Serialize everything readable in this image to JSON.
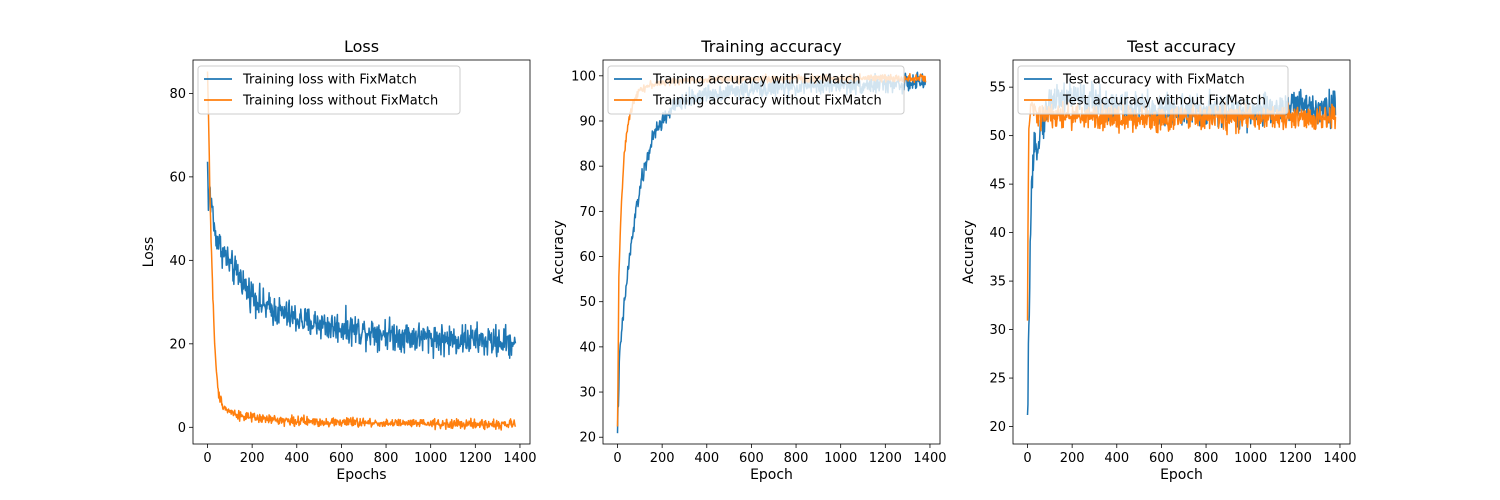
{
  "chart_data": [
    {
      "type": "line",
      "title": "Loss",
      "xlabel": "Epochs",
      "ylabel": "Loss",
      "xlim": [
        -65,
        1445
      ],
      "ylim": [
        -4,
        88
      ],
      "xticks": [
        0,
        200,
        400,
        600,
        800,
        1000,
        1200,
        1400
      ],
      "yticks": [
        0,
        20,
        40,
        60,
        80
      ],
      "legend_position": "upper-left",
      "series": [
        {
          "name": "Training loss with FixMatch",
          "color": "#1f77b4",
          "x": [
            0,
            5,
            10,
            15,
            20,
            30,
            40,
            50,
            60,
            80,
            100,
            125,
            150,
            175,
            200,
            250,
            300,
            350,
            400,
            450,
            500,
            550,
            600,
            650,
            700,
            750,
            800,
            850,
            900,
            950,
            1000,
            1050,
            1100,
            1150,
            1200,
            1250,
            1300,
            1350,
            1380
          ],
          "y": [
            63,
            53,
            58,
            51,
            55,
            47,
            46,
            44,
            43,
            41,
            39,
            37,
            36,
            33,
            32,
            29,
            28,
            27,
            26,
            25,
            25,
            24,
            24,
            23.5,
            23,
            23,
            22.5,
            22,
            22,
            21.5,
            21.5,
            21,
            21,
            21,
            21,
            20.5,
            20.5,
            20.5,
            20.5
          ],
          "noise": 2.3
        },
        {
          "name": "Training loss without FixMatch",
          "color": "#ff7f0e",
          "x": [
            0,
            5,
            10,
            15,
            20,
            25,
            30,
            35,
            40,
            45,
            50,
            60,
            70,
            80,
            100,
            150,
            200,
            300,
            400,
            500,
            600,
            700,
            800,
            900,
            1000,
            1100,
            1200,
            1300,
            1380
          ],
          "y": [
            85,
            74,
            58,
            47,
            38,
            30,
            23,
            17,
            13,
            10,
            8,
            6.5,
            5.5,
            4.5,
            3.8,
            2.8,
            2.2,
            1.8,
            1.5,
            1.3,
            1.2,
            1.1,
            1.0,
            0.9,
            0.8,
            0.8,
            0.7,
            0.7,
            0.7
          ],
          "noise": 0.7
        }
      ]
    },
    {
      "type": "line",
      "title": "Training accuracy",
      "xlabel": "Epoch",
      "ylabel": "Accuracy",
      "xlim": [
        -65,
        1445
      ],
      "ylim": [
        18.5,
        103.5
      ],
      "xticks": [
        0,
        200,
        400,
        600,
        800,
        1000,
        1200,
        1400
      ],
      "yticks": [
        20,
        30,
        40,
        50,
        60,
        70,
        80,
        90,
        100
      ],
      "legend_position": "upper-left",
      "series": [
        {
          "name": "Training accuracy with FixMatch",
          "color": "#1f77b4",
          "x": [
            0,
            5,
            10,
            20,
            30,
            40,
            50,
            60,
            80,
            100,
            120,
            150,
            175,
            200,
            250,
            300,
            400,
            500,
            600,
            700,
            800,
            900,
            1000,
            1100,
            1200,
            1300,
            1380
          ],
          "y": [
            22,
            30,
            38,
            44,
            49,
            54,
            58,
            62,
            69,
            75,
            79,
            85,
            88,
            90,
            93,
            94.5,
            96,
            96.5,
            97,
            97.3,
            97.6,
            97.8,
            98,
            98,
            98.2,
            98.3,
            98.5
          ],
          "noise": 1.2
        },
        {
          "name": "Training accuracy without FixMatch",
          "color": "#ff7f0e",
          "x": [
            0,
            3,
            6,
            10,
            15,
            20,
            25,
            30,
            40,
            50,
            60,
            70,
            80,
            100,
            150,
            200,
            300,
            400,
            600,
            800,
            1000,
            1200,
            1380
          ],
          "y": [
            22,
            38,
            55,
            62,
            69,
            74,
            78,
            82,
            87,
            90,
            92,
            94,
            95.5,
            97,
            98,
            98.5,
            99,
            99.2,
            99.3,
            99.4,
            99.4,
            99.5,
            99.5
          ],
          "noise": 0.5
        }
      ]
    },
    {
      "type": "line",
      "title": "Test accuracy",
      "xlabel": "Epoch",
      "ylabel": "Accuracy",
      "xlim": [
        -65,
        1445
      ],
      "ylim": [
        18.2,
        57.8
      ],
      "xticks": [
        0,
        200,
        400,
        600,
        800,
        1000,
        1200,
        1400
      ],
      "yticks": [
        20,
        25,
        30,
        35,
        40,
        45,
        50,
        55
      ],
      "legend_position": "upper-left",
      "series": [
        {
          "name": "Test accuracy with FixMatch",
          "color": "#1f77b4",
          "x": [
            0,
            5,
            10,
            15,
            20,
            25,
            30,
            40,
            50,
            60,
            80,
            100,
            150,
            200,
            300,
            400,
            500,
            600,
            800,
            1000,
            1200,
            1300,
            1380
          ],
          "y": [
            20,
            28,
            36,
            41,
            45,
            46,
            48,
            49,
            50,
            51,
            52,
            53.5,
            54,
            54,
            53.5,
            53,
            52.8,
            52.7,
            52.5,
            52.5,
            53,
            53,
            53
          ],
          "noise": 1.1
        },
        {
          "name": "Test accuracy without FixMatch",
          "color": "#ff7f0e",
          "x": [
            0,
            3,
            6,
            10,
            15,
            20,
            30,
            50,
            100,
            200,
            400,
            600,
            800,
            1000,
            1200,
            1380
          ],
          "y": [
            30,
            44,
            50,
            52,
            53,
            53,
            52.5,
            52,
            52,
            52,
            51.8,
            51.8,
            51.8,
            51.8,
            51.8,
            51.8
          ],
          "noise": 0.8
        }
      ]
    }
  ]
}
